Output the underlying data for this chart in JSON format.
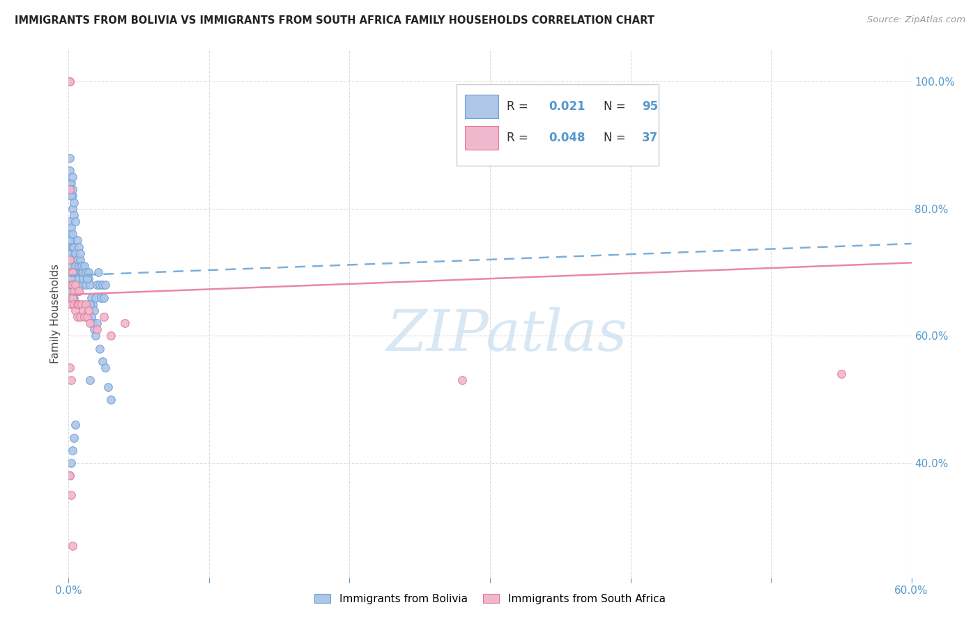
{
  "title": "IMMIGRANTS FROM BOLIVIA VS IMMIGRANTS FROM SOUTH AFRICA FAMILY HOUSEHOLDS CORRELATION CHART",
  "source": "Source: ZipAtlas.com",
  "ylabel": "Family Households",
  "bolivia_color": "#aec6e8",
  "bolivia_edge_color": "#6a9fd8",
  "sa_color": "#f0b8cc",
  "sa_edge_color": "#e07898",
  "bolivia_trend_color": "#7aaedc",
  "sa_trend_color": "#e888a8",
  "background_color": "#ffffff",
  "grid_color": "#dddddd",
  "tick_color": "#5599cc",
  "title_color": "#222222",
  "source_color": "#999999",
  "ylabel_color": "#444444",
  "watermark_color": "#c8ddf0",
  "xlim": [
    0.0,
    0.6
  ],
  "ylim": [
    0.22,
    1.05
  ],
  "xticks": [
    0.0,
    0.1,
    0.2,
    0.3,
    0.4,
    0.5,
    0.6
  ],
  "xticklabels": [
    "0.0%",
    "",
    "",
    "",
    "",
    "",
    "60.0%"
  ],
  "yticks_right": [
    0.4,
    0.6,
    0.8,
    1.0
  ],
  "yticklabels_right": [
    "40.0%",
    "60.0%",
    "80.0%",
    "100.0%"
  ],
  "bolivia_x": [
    0.001,
    0.001,
    0.001,
    0.001,
    0.001,
    0.001,
    0.001,
    0.001,
    0.001,
    0.002,
    0.002,
    0.002,
    0.002,
    0.002,
    0.002,
    0.002,
    0.002,
    0.003,
    0.003,
    0.003,
    0.003,
    0.003,
    0.003,
    0.004,
    0.004,
    0.004,
    0.004,
    0.005,
    0.005,
    0.005,
    0.005,
    0.006,
    0.006,
    0.006,
    0.007,
    0.007,
    0.007,
    0.008,
    0.008,
    0.009,
    0.009,
    0.01,
    0.01,
    0.011,
    0.012,
    0.013,
    0.014,
    0.015,
    0.015,
    0.016,
    0.017,
    0.018,
    0.019,
    0.02,
    0.021,
    0.022,
    0.023,
    0.024,
    0.025,
    0.026,
    0.001,
    0.001,
    0.001,
    0.002,
    0.002,
    0.003,
    0.003,
    0.004,
    0.004,
    0.005,
    0.006,
    0.007,
    0.008,
    0.009,
    0.01,
    0.011,
    0.012,
    0.013,
    0.014,
    0.015,
    0.016,
    0.017,
    0.018,
    0.019,
    0.02,
    0.022,
    0.024,
    0.026,
    0.028,
    0.03,
    0.001,
    0.002,
    0.003,
    0.004,
    0.005
  ],
  "bolivia_y": [
    0.72,
    0.74,
    0.76,
    0.78,
    0.7,
    0.68,
    0.66,
    0.73,
    0.75,
    0.71,
    0.73,
    0.75,
    0.77,
    0.69,
    0.67,
    0.65,
    0.72,
    0.74,
    0.7,
    0.68,
    0.8,
    0.82,
    0.76,
    0.72,
    0.74,
    0.68,
    0.66,
    0.71,
    0.73,
    0.67,
    0.65,
    0.7,
    0.72,
    0.68,
    0.69,
    0.71,
    0.67,
    0.7,
    0.72,
    0.68,
    0.7,
    0.69,
    0.71,
    0.7,
    0.68,
    0.7,
    0.69,
    0.68,
    0.53,
    0.66,
    0.65,
    0.64,
    0.66,
    0.68,
    0.7,
    0.68,
    0.66,
    0.68,
    0.66,
    0.68,
    0.84,
    0.88,
    0.86,
    0.84,
    0.82,
    0.83,
    0.85,
    0.81,
    0.79,
    0.78,
    0.75,
    0.74,
    0.73,
    0.71,
    0.7,
    0.71,
    0.7,
    0.69,
    0.7,
    0.65,
    0.63,
    0.62,
    0.61,
    0.6,
    0.62,
    0.58,
    0.56,
    0.55,
    0.52,
    0.5,
    0.38,
    0.4,
    0.42,
    0.44,
    0.46
  ],
  "sa_x": [
    0.001,
    0.001,
    0.001,
    0.001,
    0.002,
    0.002,
    0.002,
    0.003,
    0.003,
    0.003,
    0.004,
    0.004,
    0.005,
    0.005,
    0.006,
    0.006,
    0.007,
    0.007,
    0.008,
    0.009,
    0.01,
    0.011,
    0.012,
    0.013,
    0.014,
    0.015,
    0.02,
    0.025,
    0.03,
    0.04,
    0.001,
    0.002,
    0.28,
    0.55,
    0.001,
    0.002,
    0.003
  ],
  "sa_y": [
    1.0,
    1.0,
    0.83,
    0.72,
    0.7,
    0.65,
    0.68,
    0.66,
    0.7,
    0.68,
    0.65,
    0.67,
    0.64,
    0.68,
    0.65,
    0.63,
    0.65,
    0.67,
    0.63,
    0.65,
    0.64,
    0.63,
    0.65,
    0.63,
    0.64,
    0.62,
    0.61,
    0.63,
    0.6,
    0.62,
    0.55,
    0.53,
    0.53,
    0.54,
    0.38,
    0.35,
    0.27
  ],
  "bolivia_trend_x": [
    0.0,
    0.6
  ],
  "bolivia_trend_y": [
    0.695,
    0.745
  ],
  "sa_trend_x": [
    0.0,
    0.6
  ],
  "sa_trend_y": [
    0.665,
    0.715
  ]
}
